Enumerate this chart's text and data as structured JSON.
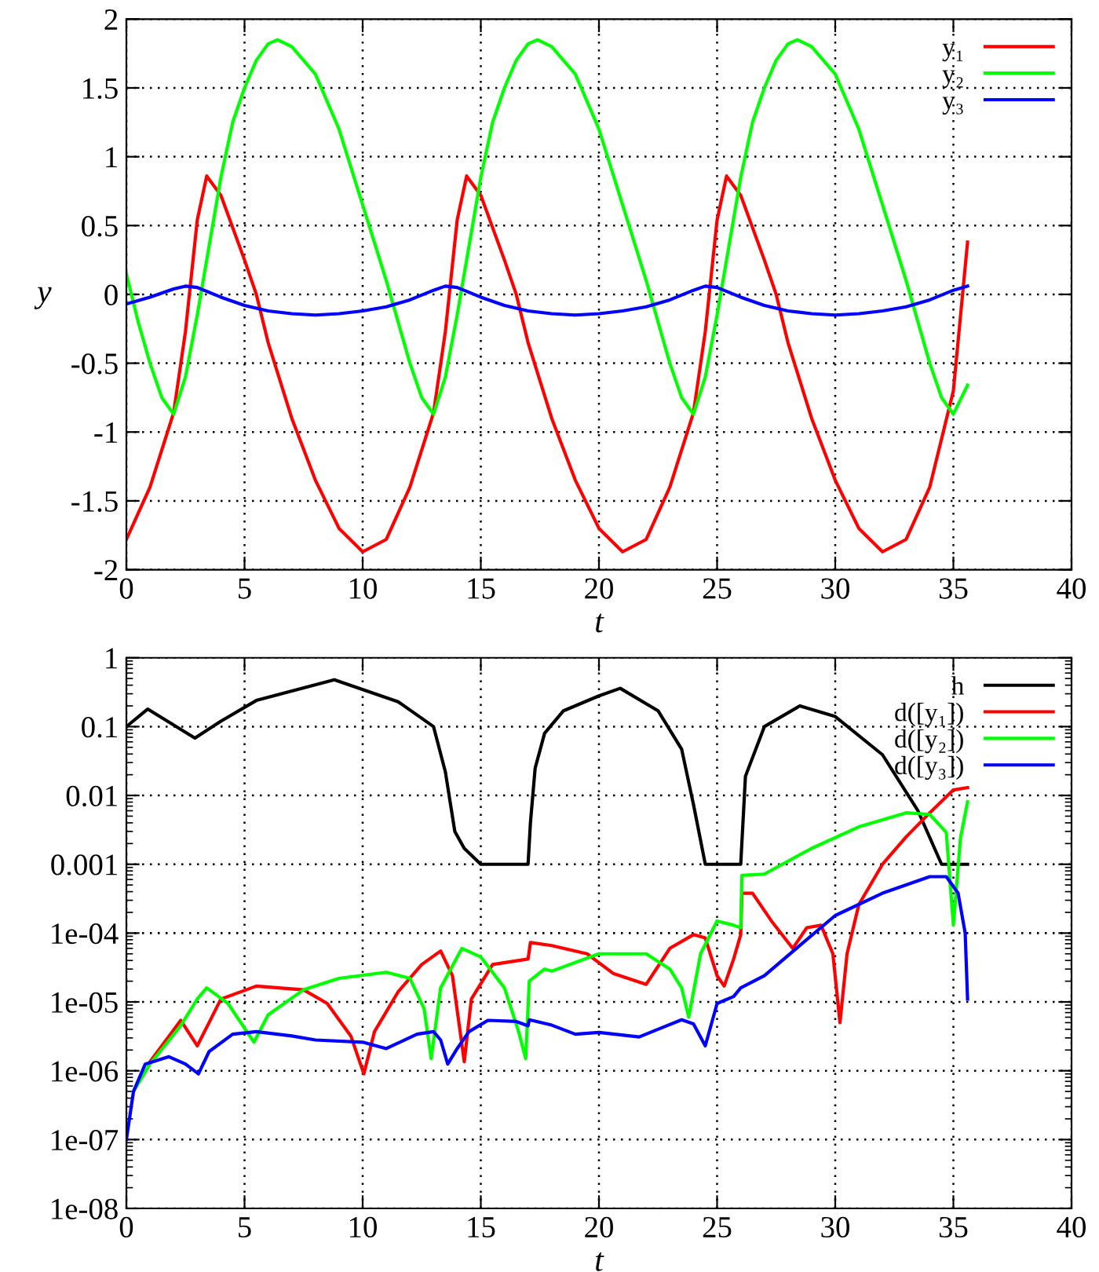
{
  "chart_data": [
    {
      "type": "line",
      "xlabel": "t",
      "ylabel": "y",
      "xlim": [
        0,
        40
      ],
      "xticks": [
        0,
        5,
        10,
        15,
        20,
        25,
        30,
        35,
        40
      ],
      "ylim": [
        -2,
        2
      ],
      "yticks": [
        -2,
        -1.5,
        -1,
        -0.5,
        0,
        0.5,
        1,
        1.5,
        2
      ],
      "grid": true,
      "legend": "top right",
      "marker": "none",
      "line_style": "solid",
      "series": [
        {
          "name": "y₁",
          "color": "#ff0000",
          "x": [
            0,
            1,
            2,
            2.5,
            3,
            3.4,
            4,
            5,
            5.5,
            6,
            7,
            8,
            9,
            10,
            11,
            12,
            13,
            13.5,
            14,
            14.4,
            15,
            16,
            16.5,
            17,
            18,
            19,
            20,
            21,
            22,
            23,
            24,
            24.5,
            25,
            25.4,
            26,
            27,
            27.5,
            28,
            29,
            30,
            31,
            32,
            33,
            34,
            35,
            35.6
          ],
          "values": [
            -1.78,
            -1.4,
            -0.86,
            -0.27,
            0.54,
            0.86,
            0.72,
            0.25,
            0,
            -0.35,
            -0.9,
            -1.35,
            -1.7,
            -1.87,
            -1.78,
            -1.4,
            -0.86,
            -0.27,
            0.54,
            0.86,
            0.72,
            0.25,
            0,
            -0.35,
            -0.9,
            -1.35,
            -1.7,
            -1.87,
            -1.78,
            -1.4,
            -0.86,
            -0.27,
            0.54,
            0.86,
            0.72,
            0.25,
            0,
            -0.35,
            -0.9,
            -1.35,
            -1.7,
            -1.87,
            -1.78,
            -1.4,
            -0.7,
            0.38
          ]
        },
        {
          "name": "y₂",
          "color": "#00ff00",
          "x": [
            0,
            0.5,
            1,
            1.5,
            2,
            2.5,
            3,
            3.5,
            4,
            4.5,
            5,
            5.5,
            6,
            6.4,
            7,
            8,
            9,
            10,
            11,
            11.5,
            12,
            12.5,
            13,
            13.5,
            14,
            14.5,
            15,
            15.5,
            16,
            16.5,
            17,
            17.4,
            18,
            19,
            20,
            21,
            22,
            22.5,
            23,
            23.5,
            24,
            24.5,
            25,
            25.5,
            26,
            26.5,
            27,
            27.5,
            28,
            28.4,
            29,
            30,
            31,
            32,
            33,
            33.5,
            34,
            34.5,
            35,
            35.6
          ],
          "values": [
            0.15,
            -0.2,
            -0.5,
            -0.75,
            -0.87,
            -0.6,
            -0.15,
            0.35,
            0.85,
            1.25,
            1.5,
            1.7,
            1.82,
            1.85,
            1.8,
            1.6,
            1.2,
            0.65,
            0.1,
            -0.2,
            -0.5,
            -0.75,
            -0.87,
            -0.6,
            -0.15,
            0.35,
            0.85,
            1.25,
            1.5,
            1.7,
            1.82,
            1.85,
            1.8,
            1.6,
            1.2,
            0.65,
            0.1,
            -0.2,
            -0.5,
            -0.75,
            -0.87,
            -0.6,
            -0.15,
            0.35,
            0.85,
            1.25,
            1.5,
            1.7,
            1.82,
            1.85,
            1.8,
            1.6,
            1.2,
            0.65,
            0.1,
            -0.2,
            -0.5,
            -0.75,
            -0.87,
            -0.66
          ]
        },
        {
          "name": "y₃",
          "color": "#0000ff",
          "x": [
            0,
            1,
            2,
            2.5,
            3,
            4,
            5,
            6,
            7,
            8,
            9,
            10,
            11,
            12,
            13,
            13.5,
            14,
            15,
            16,
            17,
            18,
            19,
            20,
            21,
            22,
            23,
            24,
            24.5,
            25,
            26,
            27,
            28,
            29,
            30,
            31,
            32,
            33,
            34,
            35,
            35.6
          ],
          "values": [
            -0.07,
            -0.02,
            0.04,
            0.06,
            0.05,
            -0.02,
            -0.08,
            -0.12,
            -0.14,
            -0.15,
            -0.14,
            -0.12,
            -0.09,
            -0.04,
            0.03,
            0.06,
            0.05,
            -0.02,
            -0.08,
            -0.12,
            -0.14,
            -0.15,
            -0.14,
            -0.12,
            -0.09,
            -0.04,
            0.03,
            0.06,
            0.05,
            -0.02,
            -0.08,
            -0.12,
            -0.14,
            -0.15,
            -0.14,
            -0.12,
            -0.09,
            -0.04,
            0.03,
            0.06
          ]
        }
      ]
    },
    {
      "type": "line",
      "xlabel": "t",
      "log": "y",
      "xlim": [
        0,
        40
      ],
      "xticks": [
        0,
        5,
        10,
        15,
        20,
        25,
        30,
        35,
        40
      ],
      "ylim": [
        1e-08,
        1
      ],
      "yticks": [
        {
          "value": 1e-08,
          "label": "1e-08"
        },
        {
          "value": 1e-07,
          "label": "1e-07"
        },
        {
          "value": 1e-06,
          "label": "1e-06"
        },
        {
          "value": 1e-05,
          "label": "1e-05"
        },
        {
          "value": 0.0001,
          "label": "1e-04"
        },
        0.001,
        0.01,
        0.1,
        1
      ],
      "grid": true,
      "legend": "top right",
      "marker": "none",
      "line_style": "solid",
      "series": [
        {
          "name": "h",
          "color": "#000000",
          "x": [
            0,
            0.9,
            2.9,
            4,
            5.5,
            8.8,
            11.5,
            13,
            13.5,
            13.9,
            14.3,
            15,
            17,
            17.1,
            17.3,
            17.7,
            18.5,
            20,
            20.9,
            22.5,
            23.5,
            24,
            24.5,
            26,
            26.2,
            27,
            28.5,
            30,
            32,
            33.5,
            34.5,
            35.6
          ],
          "values": [
            0.1,
            0.18,
            0.068,
            0.12,
            0.24,
            0.48,
            0.23,
            0.1,
            0.022,
            0.003,
            0.0017,
            0.001,
            0.001,
            0.004,
            0.025,
            0.08,
            0.17,
            0.28,
            0.36,
            0.17,
            0.047,
            0.0074,
            0.001,
            0.001,
            0.019,
            0.1,
            0.2,
            0.14,
            0.039,
            0.006,
            0.001,
            0.001
          ]
        },
        {
          "name": "d([y₁])",
          "color": "#ff0000",
          "x": [
            1,
            2.3,
            3,
            3.5,
            4,
            5.5,
            7.5,
            8.5,
            9.5,
            10.05,
            10.5,
            11.5,
            12.5,
            13.3,
            13.8,
            14.3,
            14.6,
            15.5,
            17,
            17.1,
            18,
            19.5,
            20.6,
            22,
            23,
            24,
            24.5,
            25,
            25.3,
            25.7,
            26,
            26.05,
            26.5,
            27.3,
            28.2,
            28.8,
            29.4,
            29.9,
            30.2,
            30.5,
            31,
            32,
            33,
            34,
            35,
            35.6
          ],
          "values": [
            1.35e-06,
            5.4e-06,
            2.3e-06,
            5e-06,
            1.1e-05,
            1.7e-05,
            1.5e-05,
            9.5e-06,
            3.2e-06,
            9e-07,
            3.7e-06,
            1.4e-05,
            3.5e-05,
            5.5e-05,
            2.4e-05,
            1.35e-06,
            1.1e-05,
            3.5e-05,
            4.2e-05,
            7.3e-05,
            6.6e-05,
            5e-05,
            2.6e-05,
            1.8e-05,
            6e-05,
            9.5e-05,
            8.5e-05,
            2.4e-05,
            1.7e-05,
            4.2e-05,
            9.5e-05,
            0.00038,
            0.00038,
            0.00015,
            6e-05,
            0.00012,
            0.00013,
            5e-05,
            5e-06,
            5e-05,
            0.00026,
            0.001,
            0.0025,
            0.0056,
            0.012,
            0.013
          ]
        },
        {
          "name": "d([y₂])",
          "color": "#00ff00",
          "x": [
            0.3,
            1,
            2.3,
            3,
            3.4,
            4.3,
            5.4,
            6,
            7.5,
            9,
            11,
            12,
            12.6,
            12.9,
            13.3,
            14.2,
            15,
            16,
            16.6,
            16.9,
            17.05,
            17.7,
            18,
            20,
            22,
            23,
            23.5,
            23.8,
            24.3,
            25,
            25.7,
            26,
            26.05,
            27,
            29,
            31,
            33,
            34,
            34.7,
            35,
            35.3,
            35.6
          ],
          "values": [
            5e-07,
            1.25e-06,
            4.5e-06,
            1.1e-05,
            1.6e-05,
            9.5e-06,
            2.6e-06,
            6.5e-06,
            1.5e-05,
            2.2e-05,
            2.7e-05,
            2.2e-05,
            8e-06,
            1.5e-06,
            1.6e-05,
            6e-05,
            4.5e-05,
            1.6e-05,
            3.7e-06,
            1.5e-06,
            2e-05,
            3e-05,
            2.8e-05,
            5e-05,
            5e-05,
            3e-05,
            1.6e-05,
            6e-06,
            5e-05,
            0.00015,
            0.00013,
            0.00012,
            0.00069,
            0.00072,
            0.0017,
            0.0035,
            0.0056,
            0.0053,
            0.0029,
            0.00013,
            0.0024,
            0.0081
          ]
        },
        {
          "name": "d([y₃])",
          "color": "#0000ff",
          "x": [
            0,
            0.3,
            0.8,
            1.8,
            2.5,
            3.05,
            3.5,
            4.5,
            5.5,
            7,
            8,
            10,
            11,
            12.3,
            13,
            13.3,
            13.6,
            14,
            14.5,
            15.3,
            16.5,
            17,
            17.05,
            18,
            19,
            20,
            21.7,
            22.5,
            23.5,
            24,
            24.5,
            25,
            25.7,
            26,
            27,
            28.5,
            30,
            32,
            34,
            34.7,
            35.2,
            35.5,
            35.6
          ],
          "values": [
            1e-07,
            5e-07,
            1.25e-06,
            1.6e-06,
            1.25e-06,
            9e-07,
            1.9e-06,
            3.4e-06,
            3.7e-06,
            3.2e-06,
            2.8e-06,
            2.6e-06,
            2.1e-06,
            3.4e-06,
            3.7e-06,
            2.8e-06,
            1.25e-06,
            2.1e-06,
            3.7e-06,
            5.4e-06,
            5.2e-06,
            4.5e-06,
            5.5e-06,
            4.6e-06,
            3.4e-06,
            3.6e-06,
            3.1e-06,
            4e-06,
            5.5e-06,
            4.8e-06,
            2.3e-06,
            9.5e-06,
            1.2e-05,
            1.6e-05,
            2.4e-05,
            6.6e-05,
            0.00018,
            0.00038,
            0.00066,
            0.00066,
            0.00038,
            0.0001,
            1.1e-05
          ]
        }
      ]
    }
  ]
}
